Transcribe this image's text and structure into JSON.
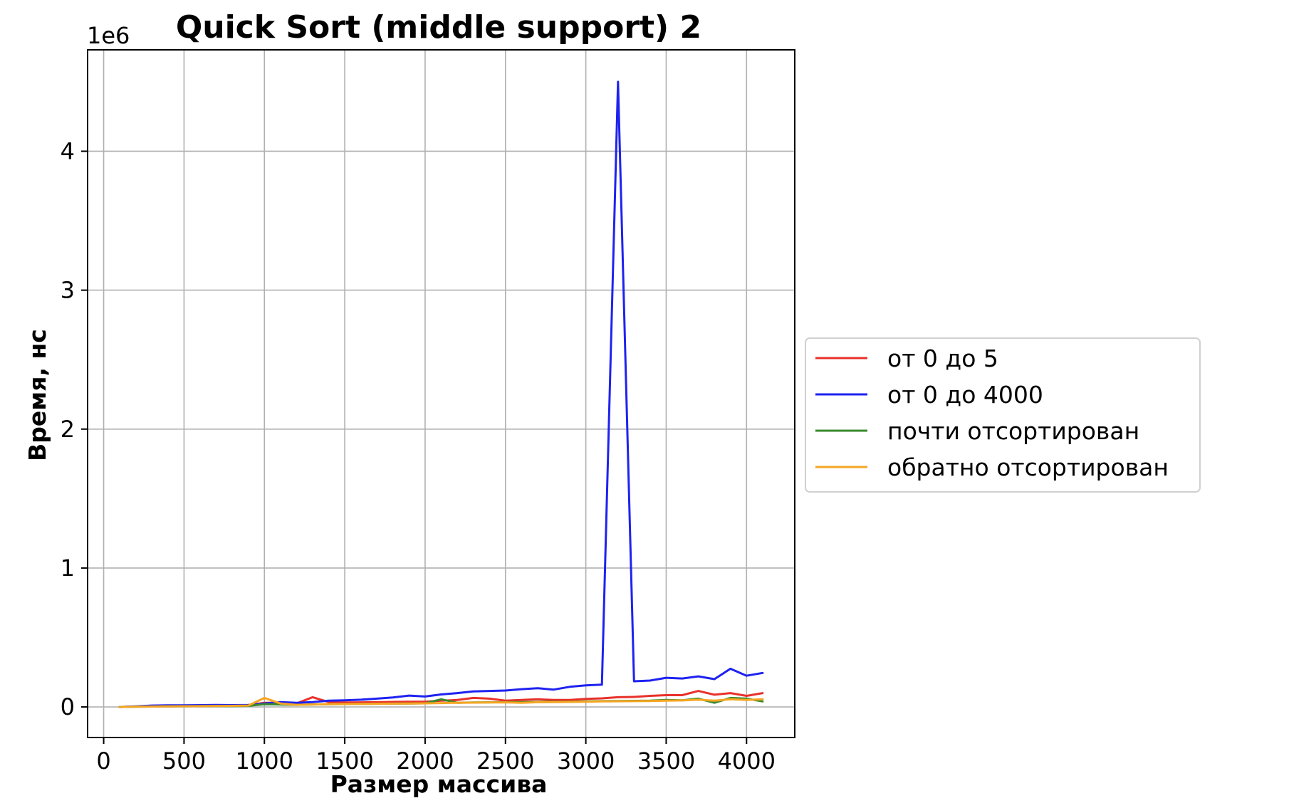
{
  "chart_data": {
    "type": "line",
    "title": "Quick Sort (middle support) 2",
    "xlabel": "Размер массива",
    "ylabel": "Время, нс",
    "y_offset_label": "1e6",
    "xlim": [
      -100,
      4300
    ],
    "ylim": [
      -0.22,
      4.73
    ],
    "y_multiplier": 1000000,
    "x_ticks": [
      0,
      500,
      1000,
      1500,
      2000,
      2500,
      3000,
      3500,
      4000
    ],
    "y_ticks": [
      0,
      1,
      2,
      3,
      4
    ],
    "grid": true,
    "legend_position": "center-right, outside plot",
    "x": [
      100,
      200,
      300,
      400,
      500,
      600,
      700,
      800,
      900,
      1000,
      1100,
      1200,
      1300,
      1400,
      1500,
      1600,
      1700,
      1800,
      1900,
      2000,
      2100,
      2200,
      2300,
      2400,
      2500,
      2600,
      2700,
      2800,
      2900,
      3000,
      3100,
      3200,
      3300,
      3400,
      3500,
      3600,
      3700,
      3800,
      3900,
      4000,
      4100
    ],
    "series": [
      {
        "name": "от 0 до 5",
        "color": "#e8312a",
        "values": [
          0.0,
          0.003,
          0.005,
          0.007,
          0.008,
          0.009,
          0.01,
          0.011,
          0.013,
          0.03,
          0.03,
          0.025,
          0.07,
          0.035,
          0.032,
          0.033,
          0.034,
          0.036,
          0.037,
          0.038,
          0.045,
          0.05,
          0.065,
          0.06,
          0.045,
          0.05,
          0.055,
          0.05,
          0.05,
          0.058,
          0.062,
          0.07,
          0.072,
          0.08,
          0.085,
          0.085,
          0.115,
          0.088,
          0.1,
          0.08,
          0.1
        ]
      },
      {
        "name": "от 0 до 4000",
        "color": "#1e22f0",
        "values": [
          0.0,
          0.004,
          0.01,
          0.012,
          0.012,
          0.013,
          0.014,
          0.013,
          0.014,
          0.025,
          0.035,
          0.03,
          0.035,
          0.045,
          0.048,
          0.052,
          0.06,
          0.068,
          0.082,
          0.075,
          0.09,
          0.1,
          0.112,
          0.115,
          0.118,
          0.128,
          0.135,
          0.125,
          0.145,
          0.155,
          0.16,
          4.5,
          0.185,
          0.19,
          0.21,
          0.205,
          0.22,
          0.2,
          0.275,
          0.225,
          0.245
        ]
      },
      {
        "name": "почти отсортирован",
        "color": "#3a8a2e",
        "values": [
          0.0,
          0.002,
          0.003,
          0.004,
          0.005,
          0.006,
          0.007,
          0.007,
          0.008,
          0.02,
          0.018,
          0.015,
          0.018,
          0.02,
          0.021,
          0.022,
          0.023,
          0.024,
          0.025,
          0.026,
          0.055,
          0.03,
          0.032,
          0.033,
          0.034,
          0.035,
          0.036,
          0.037,
          0.038,
          0.04,
          0.042,
          0.043,
          0.044,
          0.045,
          0.05,
          0.048,
          0.06,
          0.03,
          0.065,
          0.06,
          0.04
        ]
      },
      {
        "name": "обратно отсортирован",
        "color": "#f5a623",
        "values": [
          0.0,
          0.002,
          0.003,
          0.004,
          0.005,
          0.006,
          0.007,
          0.008,
          0.01,
          0.065,
          0.025,
          0.015,
          0.018,
          0.02,
          0.021,
          0.022,
          0.023,
          0.024,
          0.025,
          0.026,
          0.028,
          0.03,
          0.031,
          0.032,
          0.033,
          0.03,
          0.034,
          0.035,
          0.036,
          0.038,
          0.04,
          0.041,
          0.042,
          0.043,
          0.045,
          0.047,
          0.052,
          0.045,
          0.055,
          0.05,
          0.055
        ]
      }
    ]
  }
}
